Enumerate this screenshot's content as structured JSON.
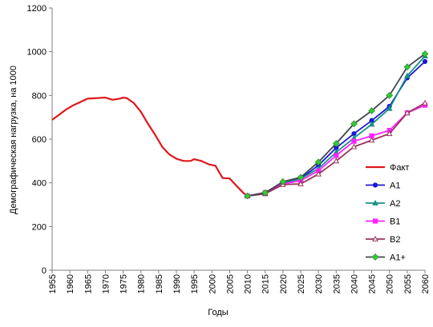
{
  "chart_data": {
    "type": "line",
    "title": "",
    "xlabel": "Годы",
    "ylabel": "Демографическая нагрузка, на 1000",
    "xlim": [
      1955,
      2060
    ],
    "ylim": [
      0,
      1200
    ],
    "x_ticks": [
      1955,
      1960,
      1965,
      1970,
      1975,
      1980,
      1985,
      1990,
      1995,
      2000,
      2005,
      2010,
      2015,
      2020,
      2025,
      2030,
      2035,
      2040,
      2045,
      2050,
      2055,
      2060
    ],
    "y_ticks": [
      0,
      200,
      400,
      600,
      800,
      1000,
      1200
    ],
    "grid": false,
    "legend_position": "right",
    "series": [
      {
        "name": "Факт",
        "color": "#e0161b",
        "marker": "none",
        "x": [
          1955,
          1957,
          1959,
          1961,
          1963,
          1965,
          1967,
          1969,
          1970,
          1972,
          1974,
          1975,
          1976,
          1978,
          1980,
          1982,
          1984,
          1986,
          1988,
          1990,
          1992,
          1994,
          1995,
          1997,
          1999,
          2001,
          2002,
          2003,
          2005,
          2007,
          2009,
          2010,
          2012,
          2015
        ],
        "y": [
          688,
          712,
          736,
          755,
          770,
          785,
          787,
          789,
          790,
          780,
          785,
          790,
          788,
          765,
          725,
          670,
          620,
          565,
          530,
          510,
          500,
          500,
          508,
          500,
          485,
          478,
          450,
          422,
          420,
          385,
          352,
          340,
          345,
          355
        ]
      },
      {
        "name": "A1",
        "color": "#1a1ad0",
        "marker": "circle",
        "x": [
          2010,
          2015,
          2020,
          2025,
          2030,
          2035,
          2040,
          2045,
          2050,
          2055,
          2060
        ],
        "y": [
          340,
          355,
          400,
          420,
          480,
          560,
          625,
          685,
          750,
          880,
          955
        ]
      },
      {
        "name": "A2",
        "color": "#1a8f8a",
        "marker": "triangle",
        "x": [
          2010,
          2015,
          2020,
          2025,
          2030,
          2035,
          2040,
          2045,
          2050,
          2055,
          2060
        ],
        "y": [
          340,
          350,
          400,
          418,
          465,
          540,
          605,
          668,
          740,
          890,
          980
        ]
      },
      {
        "name": "B1",
        "color": "#ff22ff",
        "marker": "square",
        "x": [
          2010,
          2015,
          2020,
          2025,
          2030,
          2035,
          2040,
          2045,
          2050,
          2055,
          2060
        ],
        "y": [
          340,
          355,
          395,
          410,
          455,
          525,
          590,
          615,
          640,
          720,
          755
        ]
      },
      {
        "name": "B2",
        "color": "#99335a",
        "marker": "triangle-open",
        "x": [
          2010,
          2015,
          2020,
          2025,
          2030,
          2035,
          2040,
          2045,
          2050,
          2055,
          2060
        ],
        "y": [
          340,
          350,
          392,
          395,
          440,
          500,
          565,
          595,
          625,
          720,
          765
        ]
      },
      {
        "name": "A1+",
        "color": "#40464f",
        "marker_fill": "#33cc33",
        "marker": "diamond",
        "x": [
          2010,
          2015,
          2020,
          2025,
          2030,
          2035,
          2040,
          2045,
          2050,
          2055,
          2060
        ],
        "y": [
          340,
          355,
          405,
          425,
          495,
          580,
          670,
          730,
          800,
          930,
          990
        ]
      }
    ]
  }
}
